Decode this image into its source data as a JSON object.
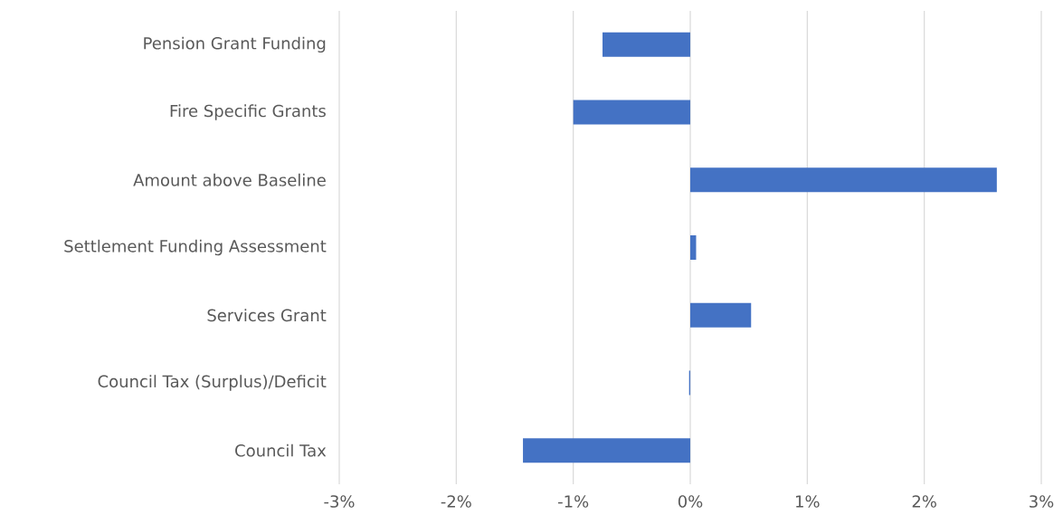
{
  "chart_data": {
    "type": "bar",
    "orientation": "horizontal",
    "categories": [
      "Pension Grant Funding",
      "Fire Specific Grants",
      "Amount above Baseline",
      "Settlement Funding Assessment",
      "Services Grant",
      "Council Tax (Surplus)/Deficit",
      "Council Tax"
    ],
    "values": [
      -0.75,
      -1.0,
      2.62,
      0.05,
      0.52,
      -0.01,
      -1.43
    ],
    "color": "#4472c4",
    "xlim": [
      -3,
      3
    ],
    "xticks": [
      {
        "value": -3,
        "label": "-3%"
      },
      {
        "value": -2,
        "label": "-2%"
      },
      {
        "value": -1,
        "label": "-1%"
      },
      {
        "value": 0,
        "label": "0%"
      },
      {
        "value": 1,
        "label": "1%"
      },
      {
        "value": 2,
        "label": "2%"
      },
      {
        "value": 3,
        "label": "3%"
      }
    ],
    "grid": "x"
  }
}
